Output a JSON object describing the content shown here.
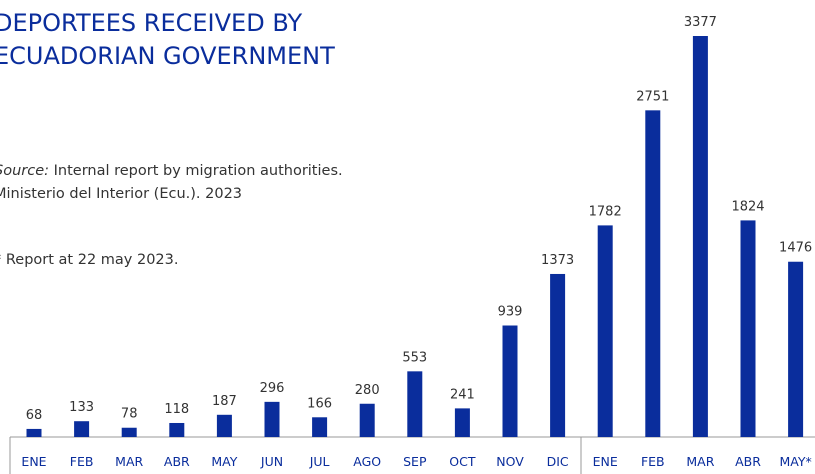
{
  "chart_data": {
    "type": "bar",
    "title": [
      "DEPORTEES RECEIVED BY",
      "ECUADORIAN GOVERNMENT"
    ],
    "source_label": "Source:",
    "source_text": [
      "Internal report by migration authorities.",
      "Ministerio del Interior (Ecu.). 2023"
    ],
    "note": "* Report at 22 may 2023.",
    "categories": [
      "ENE",
      "FEB",
      "MAR",
      "ABR",
      "MAY",
      "JUN",
      "JUL",
      "AGO",
      "SEP",
      "OCT",
      "NOV",
      "DIC",
      "ENE",
      "FEB",
      "MAR",
      "ABR",
      "MAY*"
    ],
    "values": [
      68,
      133,
      78,
      118,
      187,
      296,
      166,
      280,
      553,
      241,
      939,
      1373,
      1782,
      2751,
      3377,
      1824,
      1476
    ],
    "color": "#0a2d9c"
  }
}
